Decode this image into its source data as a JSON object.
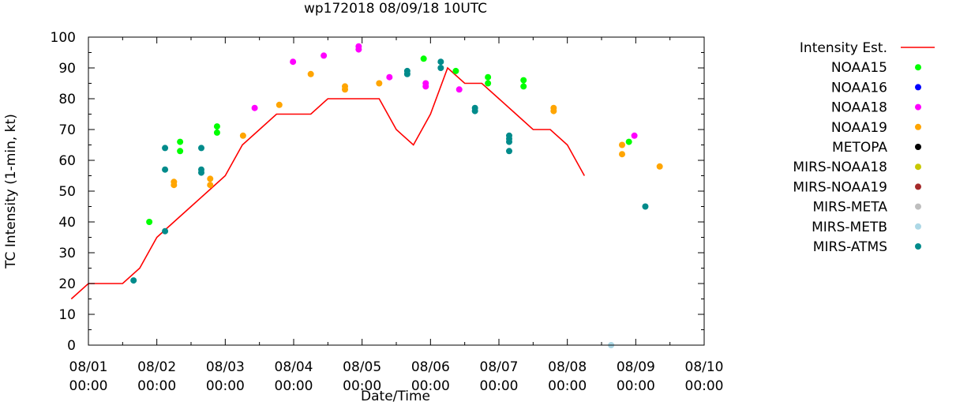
{
  "chart_data": {
    "type": "scatter",
    "title": "wp172018 08/09/18 10UTC",
    "xlabel": "Date/Time",
    "ylabel": "TC Intensity (1-min, kt)",
    "xlim": [
      0,
      9
    ],
    "ylim": [
      0,
      100
    ],
    "x_unit": "days since 08/01 00:00",
    "x_ticks": [
      {
        "value": 0,
        "line1": "08/01",
        "line2": "00:00"
      },
      {
        "value": 1,
        "line1": "08/02",
        "line2": "00:00"
      },
      {
        "value": 2,
        "line1": "08/03",
        "line2": "00:00"
      },
      {
        "value": 3,
        "line1": "08/04",
        "line2": "00:00"
      },
      {
        "value": 4,
        "line1": "08/05",
        "line2": "00:00"
      },
      {
        "value": 5,
        "line1": "08/06",
        "line2": "00:00"
      },
      {
        "value": 6,
        "line1": "08/07",
        "line2": "00:00"
      },
      {
        "value": 7,
        "line1": "08/08",
        "line2": "00:00"
      },
      {
        "value": 8,
        "line1": "08/09",
        "line2": "00:00"
      },
      {
        "value": 9,
        "line1": "08/10",
        "line2": "00:00"
      }
    ],
    "y_ticks": [
      "0",
      "10",
      "20",
      "30",
      "40",
      "50",
      "60",
      "70",
      "80",
      "90",
      "100"
    ],
    "legend_position": "right",
    "series": [
      {
        "name": "Intensity Est.",
        "kind": "line",
        "color": "#ff0000",
        "points": [
          [
            -0.25,
            15
          ],
          [
            0,
            20
          ],
          [
            0.5,
            20
          ],
          [
            0.75,
            25
          ],
          [
            1,
            35
          ],
          [
            1.25,
            40
          ],
          [
            1.5,
            45
          ],
          [
            1.75,
            50
          ],
          [
            2,
            55
          ],
          [
            2.25,
            65
          ],
          [
            2.5,
            70
          ],
          [
            2.75,
            75
          ],
          [
            3,
            75
          ],
          [
            3.25,
            75
          ],
          [
            3.5,
            80
          ],
          [
            3.75,
            80
          ],
          [
            4,
            80
          ],
          [
            4.25,
            80
          ],
          [
            4.5,
            70
          ],
          [
            4.75,
            65
          ],
          [
            5,
            75
          ],
          [
            5.25,
            90
          ],
          [
            5.5,
            85
          ],
          [
            5.75,
            85
          ],
          [
            6,
            80
          ],
          [
            6.25,
            75
          ],
          [
            6.5,
            70
          ],
          [
            6.75,
            70
          ],
          [
            7,
            65
          ],
          [
            7.25,
            55
          ]
        ]
      },
      {
        "name": "NOAA15",
        "kind": "points",
        "color": "#00ff00",
        "points": [
          [
            0.89,
            40
          ],
          [
            1.34,
            66
          ],
          [
            1.34,
            63
          ],
          [
            1.88,
            71
          ],
          [
            1.88,
            69
          ],
          [
            4.9,
            93
          ],
          [
            5.37,
            89
          ],
          [
            5.84,
            87
          ],
          [
            5.84,
            85
          ],
          [
            6.36,
            86
          ],
          [
            6.36,
            84
          ],
          [
            7.9,
            66
          ]
        ]
      },
      {
        "name": "NOAA16",
        "kind": "points",
        "color": "#0000ff",
        "points": []
      },
      {
        "name": "NOAA18",
        "kind": "points",
        "color": "#ff00ff",
        "points": [
          [
            2.43,
            77
          ],
          [
            2.99,
            92
          ],
          [
            3.44,
            94
          ],
          [
            3.95,
            97
          ],
          [
            3.95,
            96
          ],
          [
            4.4,
            87
          ],
          [
            4.93,
            85
          ],
          [
            4.93,
            84
          ],
          [
            5.42,
            83
          ],
          [
            7.98,
            68
          ]
        ]
      },
      {
        "name": "NOAA19",
        "kind": "points",
        "color": "#ffa500",
        "points": [
          [
            1.25,
            53
          ],
          [
            1.25,
            52
          ],
          [
            1.78,
            54
          ],
          [
            1.78,
            52
          ],
          [
            2.26,
            68
          ],
          [
            2.79,
            78
          ],
          [
            3.25,
            88
          ],
          [
            3.75,
            84
          ],
          [
            3.75,
            83
          ],
          [
            4.25,
            85
          ],
          [
            6.8,
            77
          ],
          [
            6.8,
            76
          ],
          [
            7.8,
            65
          ],
          [
            7.8,
            62
          ],
          [
            8.35,
            58
          ]
        ]
      },
      {
        "name": "METOPA",
        "kind": "points",
        "color": "#000000",
        "points": []
      },
      {
        "name": "MIRS-NOAA18",
        "kind": "points",
        "color": "#c8c800",
        "points": []
      },
      {
        "name": "MIRS-NOAA19",
        "kind": "points",
        "color": "#a52a2a",
        "points": []
      },
      {
        "name": "MIRS-META",
        "kind": "points",
        "color": "#bebebe",
        "points": []
      },
      {
        "name": "MIRS-METB",
        "kind": "points",
        "color": "#add8e6",
        "points": [
          [
            7.64,
            0
          ]
        ]
      },
      {
        "name": "MIRS-ATMS",
        "kind": "points",
        "color": "#008b8b",
        "points": [
          [
            0.66,
            21
          ],
          [
            1.12,
            64
          ],
          [
            1.12,
            57
          ],
          [
            1.12,
            37
          ],
          [
            1.65,
            64
          ],
          [
            1.65,
            57
          ],
          [
            1.65,
            56
          ],
          [
            4.66,
            89
          ],
          [
            4.66,
            88
          ],
          [
            5.15,
            92
          ],
          [
            5.15,
            90
          ],
          [
            5.65,
            77
          ],
          [
            5.65,
            76
          ],
          [
            6.15,
            68
          ],
          [
            6.15,
            67
          ],
          [
            6.15,
            66
          ],
          [
            6.15,
            63
          ],
          [
            8.14,
            45
          ]
        ]
      }
    ]
  }
}
